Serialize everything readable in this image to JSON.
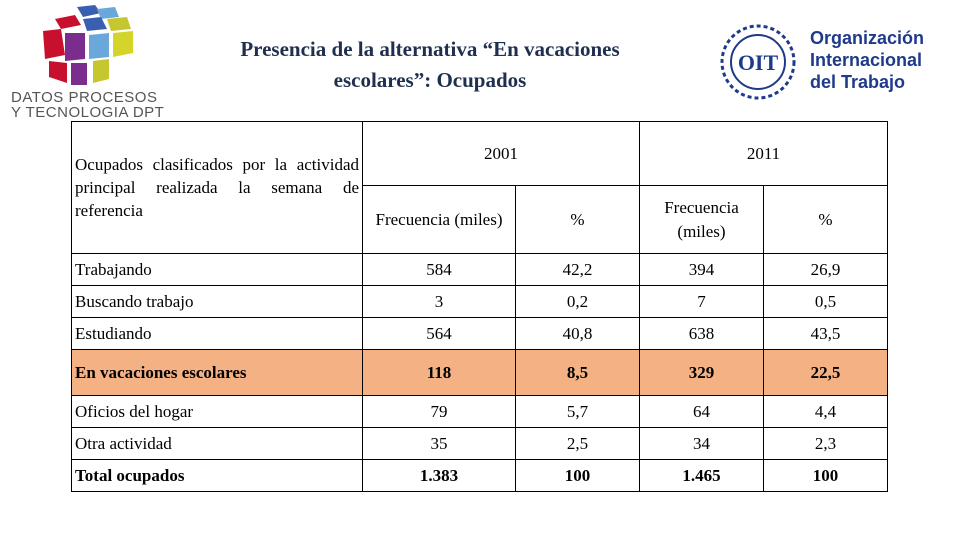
{
  "header": {
    "title_line1": "Presencia de la alternativa “En vacaciones",
    "title_line2": "escolares”: Ocupados"
  },
  "logos": {
    "left_line1": "DATOS PROCESOS",
    "left_line2": "Y TECNOLOGIA DPT",
    "right_abbr": "OIT",
    "right_line1": "Organización",
    "right_line2": "Internacional",
    "right_line3": "del Trabajo"
  },
  "table": {
    "corner_label": "Ocupados clasificados por la actividad principal realizada la semana de referencia",
    "years": [
      "2001",
      "2011"
    ],
    "subheaders": [
      "Frecuencia (miles)",
      "%",
      "Frecuencia (miles)",
      "%"
    ],
    "rows": [
      {
        "label": "Trabajando",
        "values": [
          "584",
          "42,2",
          "394",
          "26,9"
        ]
      },
      {
        "label": "Buscando trabajo",
        "values": [
          "3",
          "0,2",
          "7",
          "0,5"
        ]
      },
      {
        "label": "Estudiando",
        "values": [
          "564",
          "40,8",
          "638",
          "43,5"
        ]
      },
      {
        "label": "En vacaciones escolares",
        "values": [
          "118",
          "8,5",
          "329",
          "22,5"
        ]
      },
      {
        "label": "Oficios del hogar",
        "values": [
          "79",
          "5,7",
          "64",
          "4,4"
        ]
      },
      {
        "label": "Otra actividad",
        "values": [
          "35",
          "2,5",
          "34",
          "2,3"
        ]
      },
      {
        "label": "Total ocupados",
        "values": [
          "1.383",
          "100",
          "1.465",
          "100"
        ]
      }
    ]
  },
  "colors": {
    "highlight_row": "#f4b183",
    "title_color": "#1f2f4f",
    "oit_blue": "#1e3a8a"
  }
}
